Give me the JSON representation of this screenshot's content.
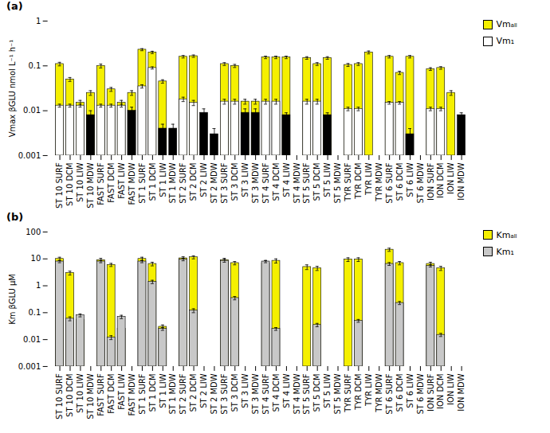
{
  "chart_data": [
    {
      "type": "bar",
      "title": "(a)",
      "ylabel": "Vmax βGLU nmol L⁻¹ h⁻¹",
      "categories": [
        "ST 10 SURF",
        "ST 10 DCM",
        "ST 10 LIW",
        "ST 10 MDW",
        "FAST SURF",
        "FAST DCM",
        "FAST LIW",
        "FAST MDW",
        "ST 1 SURF",
        "ST 1 DCM",
        "ST 1 LIW",
        "ST 1 MDW",
        "ST 2 SURF",
        "ST 2 DCM",
        "ST 2 LIW",
        "ST 2 MDW",
        "ST 3 SURF",
        "ST 3 DCM",
        "ST 3 LIW",
        "ST 3 MDW",
        "ST 4 SURF",
        "ST 4 DCM",
        "ST 4 LIW",
        "ST 4 MDW",
        "ST 5 SURF",
        "ST 5 DCM",
        "ST 5 LIW",
        "ST 5 MDW",
        "TYR SURF",
        "TYR DCM",
        "TYR LIW",
        "TYR MDW",
        "ST 6 SURF",
        "ST 6 DCM",
        "ST 6 LIW",
        "ST 6 MDW",
        "ION SURF",
        "ION DCM",
        "ION LIW",
        "ION MDW"
      ],
      "series": [
        {
          "name": "Vmₐₗₗ",
          "color": "#F5F000",
          "values": [
            0.11,
            0.05,
            0.015,
            0.025,
            0.1,
            0.03,
            0.015,
            0.025,
            0.23,
            0.2,
            0.045,
            null,
            0.16,
            0.165,
            null,
            null,
            0.11,
            0.1,
            0.016,
            0.016,
            0.155,
            0.155,
            0.155,
            null,
            0.15,
            0.11,
            0.15,
            null,
            0.105,
            0.11,
            0.2,
            null,
            0.16,
            0.07,
            0.16,
            null,
            0.085,
            0.09,
            0.025,
            null
          ],
          "errors": [
            0.01,
            0.005,
            0.002,
            0.003,
            0.01,
            0.003,
            0.002,
            0.003,
            0.012,
            0.012,
            0.004,
            null,
            0.01,
            0.01,
            null,
            null,
            0.008,
            0.008,
            0.002,
            0.002,
            0.01,
            0.01,
            0.01,
            null,
            0.01,
            0.008,
            0.01,
            null,
            0.008,
            0.008,
            0.015,
            null,
            0.01,
            0.006,
            0.01,
            null,
            0.006,
            0.006,
            0.003,
            null
          ]
        },
        {
          "name": "Vm₁",
          "color": "#FFFFFF",
          "values": [
            0.013,
            0.013,
            0.013,
            null,
            0.013,
            0.013,
            0.013,
            null,
            0.035,
            0.09,
            null,
            null,
            0.018,
            0.015,
            null,
            null,
            0.016,
            0.016,
            null,
            null,
            0.016,
            0.016,
            null,
            null,
            0.016,
            0.016,
            null,
            null,
            0.011,
            0.011,
            null,
            null,
            0.015,
            0.015,
            null,
            null,
            0.011,
            0.011,
            null,
            null
          ],
          "errors": [
            0.001,
            0.001,
            0.001,
            null,
            0.001,
            0.001,
            0.001,
            null,
            0.003,
            0.005,
            null,
            null,
            0.002,
            0.002,
            null,
            null,
            0.002,
            0.002,
            null,
            null,
            0.002,
            0.002,
            null,
            null,
            0.002,
            0.002,
            null,
            null,
            0.001,
            0.001,
            null,
            null,
            0.001,
            0.001,
            null,
            null,
            0.001,
            0.001,
            null,
            null
          ]
        },
        {
          "color": "#000000",
          "values": [
            null,
            null,
            null,
            0.008,
            null,
            null,
            null,
            0.01,
            null,
            null,
            0.004,
            0.004,
            null,
            null,
            0.009,
            0.003,
            null,
            null,
            0.009,
            0.009,
            null,
            null,
            0.008,
            null,
            null,
            null,
            0.008,
            null,
            null,
            null,
            null,
            null,
            null,
            null,
            0.003,
            null,
            null,
            null,
            null,
            0.008
          ],
          "errors": [
            null,
            null,
            null,
            0.002,
            null,
            null,
            null,
            0.002,
            null,
            null,
            0.001,
            0.001,
            null,
            null,
            0.002,
            0.001,
            null,
            null,
            0.002,
            0.002,
            null,
            null,
            0.001,
            null,
            null,
            null,
            0.001,
            null,
            null,
            null,
            null,
            null,
            null,
            null,
            0.001,
            null,
            null,
            null,
            null,
            0.001
          ]
        }
      ],
      "log": "y",
      "ylim": [
        0.001,
        1
      ],
      "yticks": [
        0.001,
        0.01,
        0.1,
        1
      ],
      "legend": "right"
    },
    {
      "type": "bar",
      "title": "(b)",
      "ylabel": "Km βGLU μM",
      "categories": [
        "ST 10 SURF",
        "ST 10 DCM",
        "ST 10 LIW",
        "ST 10 MDW",
        "FAST SURF",
        "FAST DCM",
        "FAST LIW",
        "FAST MDW",
        "ST 1 SURF",
        "ST 1 DCM",
        "ST 1 LIW",
        "ST 1 MDW",
        "ST 2 SURF",
        "ST 2 DCM",
        "ST 2 LIW",
        "ST 2 MDW",
        "ST 3 SURF",
        "ST 3 DCM",
        "ST 3 LIW",
        "ST 3 MDW",
        "ST 4 SURF",
        "ST 4 DCM",
        "ST 4 LIW",
        "ST 4 MDW",
        "ST 5 SURF",
        "ST 5 DCM",
        "ST 5 LIW",
        "ST 5 MDW",
        "TYR SURF",
        "TYR DCM",
        "TYR LIW",
        "TYR MDW",
        "ST 6 SURF",
        "ST 6 DCM",
        "ST 6 LIW",
        "ST 6 MDW",
        "ION SURF",
        "ION DCM",
        "ION LIW",
        "ION MDW"
      ],
      "series": [
        {
          "name": "Kmₐₗₗ",
          "color": "#F5F000",
          "values": [
            10.0,
            3.0,
            0.055,
            null,
            9.0,
            6.0,
            0.025,
            null,
            10.0,
            6.5,
            0.03,
            null,
            10.5,
            11.5,
            null,
            null,
            9.0,
            7.0,
            null,
            null,
            7.0,
            8.5,
            null,
            null,
            5.0,
            4.5,
            null,
            null,
            9.5,
            9.5,
            null,
            null,
            22.0,
            7.0,
            null,
            null,
            6.5,
            4.5,
            null,
            null
          ],
          "errors": [
            1.5,
            0.5,
            0.01,
            null,
            1.5,
            0.8,
            0.004,
            null,
            1.5,
            1.0,
            0.005,
            null,
            1.5,
            1.5,
            null,
            null,
            1.5,
            1.0,
            null,
            null,
            1.5,
            1.5,
            null,
            null,
            1.0,
            0.8,
            null,
            null,
            1.5,
            1.5,
            null,
            null,
            3.0,
            1.0,
            null,
            null,
            1.0,
            0.8,
            null,
            null
          ]
        },
        {
          "name": "Km₁",
          "color": "#C8C8C8",
          "values": [
            8.0,
            0.06,
            0.08,
            null,
            8.0,
            0.012,
            0.07,
            null,
            8.0,
            1.4,
            0.025,
            null,
            9.5,
            0.12,
            null,
            null,
            8.5,
            0.35,
            null,
            null,
            8.0,
            0.025,
            null,
            null,
            null,
            0.035,
            null,
            null,
            null,
            0.05,
            null,
            null,
            6.5,
            0.23,
            null,
            null,
            5.5,
            0.015,
            null,
            null
          ],
          "errors": [
            0.8,
            0.01,
            0.01,
            null,
            0.8,
            0.002,
            0.01,
            null,
            0.8,
            0.2,
            0.003,
            null,
            1.0,
            0.02,
            null,
            null,
            1.0,
            0.05,
            null,
            null,
            0.8,
            0.003,
            null,
            null,
            null,
            0.005,
            null,
            null,
            null,
            0.006,
            null,
            null,
            0.8,
            0.03,
            null,
            null,
            0.5,
            0.002,
            null,
            null
          ]
        }
      ],
      "log": "y",
      "ylim": [
        0.001,
        100
      ],
      "yticks": [
        0.001,
        0.01,
        0.1,
        1,
        10,
        100
      ],
      "legend": "right"
    }
  ]
}
